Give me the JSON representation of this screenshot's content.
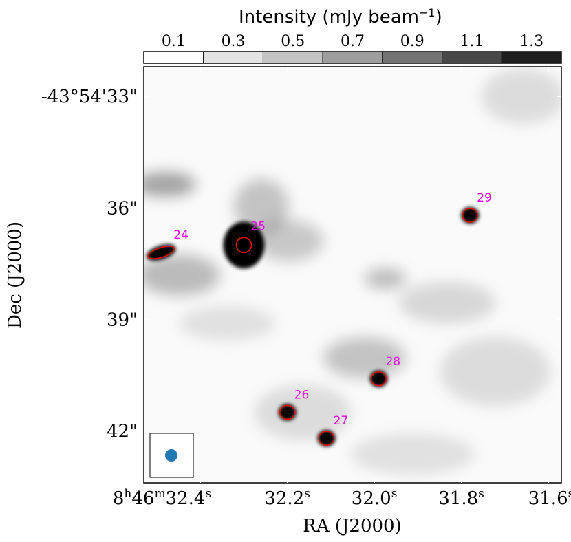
{
  "chart_data": {
    "type": "heatmap",
    "title": "",
    "xlabel": "RA (J2000)",
    "ylabel": "Dec (J2000)",
    "x_axis": {
      "unit": "seconds of RA (8h46m)",
      "lim": [
        32.53,
        31.57
      ],
      "ticks": [
        {
          "value": 32.4,
          "label": "8h46m32.4s",
          "parts": {
            "h": "8",
            "m": "46",
            "s": "32.4"
          }
        },
        {
          "value": 32.2,
          "label": "32.2s"
        },
        {
          "value": 32.0,
          "label": "32.0s"
        },
        {
          "value": 31.8,
          "label": "31.8s"
        },
        {
          "value": 31.6,
          "label": "31.6s"
        }
      ]
    },
    "y_axis": {
      "unit": "arcsec of Dec (-43°54')",
      "lim": [
        43.4,
        32.2
      ],
      "ticks": [
        {
          "value": 33,
          "label": "-43°54'33\""
        },
        {
          "value": 36,
          "label": "36\""
        },
        {
          "value": 39,
          "label": "39\""
        },
        {
          "value": 42,
          "label": "42\""
        }
      ]
    },
    "colorbar": {
      "label": "Intensity (mJy beam",
      "label_sup": "−1",
      "label_end": ")",
      "range": [
        0.0,
        1.4
      ],
      "ticks": [
        "0.1",
        "0.3",
        "0.5",
        "0.7",
        "0.9",
        "1.1",
        "1.3"
      ],
      "tick_values": [
        0.1,
        0.3,
        0.5,
        0.7,
        0.9,
        1.1,
        1.3
      ],
      "bin_edges": [
        0.0,
        0.2,
        0.4,
        0.6,
        0.8,
        1.0,
        1.2,
        1.4
      ],
      "colors": [
        "#ffffff",
        "#e3e3e3",
        "#c3c3c3",
        "#9e9e9e",
        "#737373",
        "#474747",
        "#1e1e1e"
      ]
    },
    "sources": [
      {
        "id": "24",
        "ra_s": 32.49,
        "dec_as": 37.2,
        "shape": "elongated"
      },
      {
        "id": "25",
        "ra_s": 32.3,
        "dec_as": 37.0,
        "shape": "round"
      },
      {
        "id": "26",
        "ra_s": 32.2,
        "dec_as": 41.5,
        "shape": "round"
      },
      {
        "id": "27",
        "ra_s": 32.11,
        "dec_as": 42.2,
        "shape": "round"
      },
      {
        "id": "28",
        "ra_s": 31.99,
        "dec_as": 40.6,
        "shape": "round"
      },
      {
        "id": "29",
        "ra_s": 31.78,
        "dec_as": 36.2,
        "shape": "round"
      }
    ],
    "beam": {
      "shape": "circle",
      "color": "#1f77b4",
      "location": "bottom-left"
    },
    "grid": false,
    "ellipse_color": "#ff0000",
    "label_color": "#e600e6"
  }
}
